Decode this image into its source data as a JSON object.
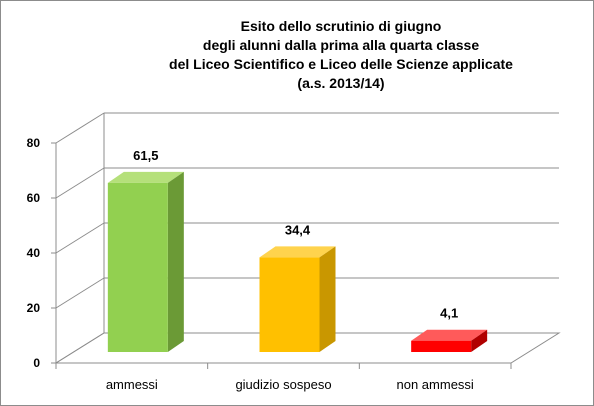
{
  "chart_data": {
    "type": "bar",
    "title_lines": [
      "Esito dello scrutinio di giugno",
      "degli alunni dalla prima alla quarta classe",
      "del Liceo Scientifico e Liceo delle Scienze applicate",
      "(a.s. 2013/14)"
    ],
    "categories": [
      "ammessi",
      "giudizio sospeso",
      "non ammessi"
    ],
    "values": [
      61.5,
      34.4,
      4.1
    ],
    "data_labels": [
      "61,5",
      "34,4",
      "4,1"
    ],
    "ylim": [
      0,
      80
    ],
    "yticks": [
      "0",
      "20",
      "40",
      "60",
      "80"
    ],
    "xlabel": "",
    "ylabel": "",
    "grid": true,
    "three_d": true,
    "legend": "none",
    "colors": [
      {
        "front": "#92d050",
        "top": "#b5e07a",
        "side": "#6b9a36"
      },
      {
        "front": "#ffc000",
        "top": "#ffd34d",
        "side": "#c99700"
      },
      {
        "front": "#ff0000",
        "top": "#ff5a5a",
        "side": "#b00000"
      }
    ]
  }
}
